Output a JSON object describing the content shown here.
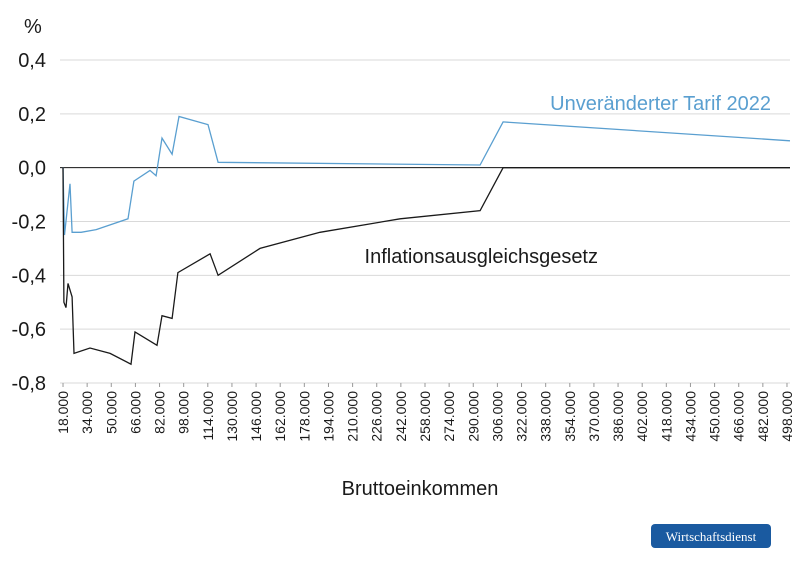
{
  "chart_data": {
    "type": "line",
    "y_label": "%",
    "x_label": "Bruttoeinkommen",
    "badge": "Wirtschaftsdienst",
    "xlim": [
      16000,
      500000
    ],
    "ylim": [
      -0.8,
      0.4
    ],
    "grid": true,
    "xticks": [
      {
        "value": 18000,
        "label": "18.000"
      },
      {
        "value": 34000,
        "label": "34.000"
      },
      {
        "value": 50000,
        "label": "50.000"
      },
      {
        "value": 66000,
        "label": "66.000"
      },
      {
        "value": 82000,
        "label": "82.000"
      },
      {
        "value": 98000,
        "label": "98.000"
      },
      {
        "value": 114000,
        "label": "114.000"
      },
      {
        "value": 130000,
        "label": "130.000"
      },
      {
        "value": 146000,
        "label": "146.000"
      },
      {
        "value": 162000,
        "label": "162.000"
      },
      {
        "value": 178000,
        "label": "178.000"
      },
      {
        "value": 194000,
        "label": "194.000"
      },
      {
        "value": 210000,
        "label": "210.000"
      },
      {
        "value": 226000,
        "label": "226.000"
      },
      {
        "value": 242000,
        "label": "242.000"
      },
      {
        "value": 258000,
        "label": "258.000"
      },
      {
        "value": 274000,
        "label": "274.000"
      },
      {
        "value": 290000,
        "label": "290.000"
      },
      {
        "value": 306000,
        "label": "306.000"
      },
      {
        "value": 322000,
        "label": "322.000"
      },
      {
        "value": 338000,
        "label": "338.000"
      },
      {
        "value": 354000,
        "label": "354.000"
      },
      {
        "value": 370000,
        "label": "370.000"
      },
      {
        "value": 386000,
        "label": "386.000"
      },
      {
        "value": 402000,
        "label": "402.000"
      },
      {
        "value": 418000,
        "label": "418.000"
      },
      {
        "value": 434000,
        "label": "434.000"
      },
      {
        "value": 450000,
        "label": "450.000"
      },
      {
        "value": 466000,
        "label": "466.000"
      },
      {
        "value": 482000,
        "label": "482.000"
      },
      {
        "value": 498000,
        "label": "498.000"
      }
    ],
    "yticks": [
      {
        "value": 0.4,
        "label": "0,4"
      },
      {
        "value": 0.2,
        "label": "0,2"
      },
      {
        "value": 0,
        "label": "0,0"
      },
      {
        "value": -0.2,
        "label": "-0,2"
      },
      {
        "value": -0.4,
        "label": "-0,4"
      },
      {
        "value": -0.6,
        "label": "-0,6"
      },
      {
        "value": -0.8,
        "label": "-0,8"
      }
    ],
    "series": [
      {
        "name": "Unveränderter Tarif 2022",
        "color": "#5a9fd0",
        "x": [
          18000,
          19000,
          22600,
          24000,
          30000,
          40000,
          61100,
          65000,
          75700,
          79700,
          83600,
          90300,
          94900,
          114100,
          120800,
          294500,
          309800,
          500000
        ],
        "values": [
          0.0,
          -0.25,
          -0.06,
          -0.24,
          -0.24,
          -0.23,
          -0.19,
          -0.05,
          -0.01,
          -0.03,
          0.11,
          0.05,
          0.19,
          0.16,
          0.02,
          0.01,
          0.17,
          0.1
        ]
      },
      {
        "name": "Inflationsausgleichsgesetz",
        "color": "#1a1a1a",
        "x": [
          18000,
          18600,
          20000,
          21300,
          24000,
          25300,
          35900,
          49200,
          63100,
          65700,
          80300,
          83600,
          90300,
          94200,
          115500,
          120800,
          148600,
          188400,
          241500,
          294500,
          309800,
          500000
        ],
        "values": [
          0.0,
          -0.5,
          -0.52,
          -0.43,
          -0.48,
          -0.69,
          -0.67,
          -0.69,
          -0.73,
          -0.61,
          -0.66,
          -0.55,
          -0.56,
          -0.39,
          -0.32,
          -0.4,
          -0.3,
          -0.24,
          -0.19,
          -0.16,
          0.0,
          0.0
        ]
      }
    ]
  }
}
